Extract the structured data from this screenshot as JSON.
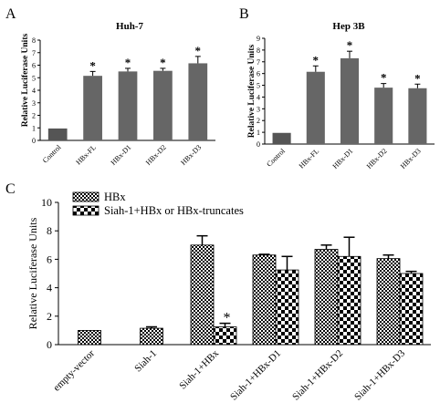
{
  "chart_data": [
    {
      "panel_label": "A",
      "type": "bar",
      "title": "Huh-7",
      "ylabel": "Relative Luciferase Units",
      "ylim": [
        0,
        8
      ],
      "yticks": [
        "0",
        "1",
        "2",
        "3",
        "4",
        "5",
        "6",
        "7",
        "8"
      ],
      "categories": [
        "Control",
        "HBx-FL",
        "HBx-D1",
        "HBx-D2",
        "HBx-D3"
      ],
      "values": [
        0.95,
        5.15,
        5.5,
        5.55,
        6.15
      ],
      "errors": [
        0,
        0.35,
        0.25,
        0.2,
        0.55
      ],
      "significance": [
        "",
        "*",
        "*",
        "*",
        "*"
      ],
      "bar_color": "#666666",
      "control_color": "#555555"
    },
    {
      "panel_label": "B",
      "type": "bar",
      "title": "Hep 3B",
      "ylabel": "Relative Luciferase Units",
      "ylim": [
        0,
        9
      ],
      "yticks": [
        "0",
        "1",
        "2",
        "3",
        "4",
        "5",
        "6",
        "7",
        "8",
        "9"
      ],
      "categories": [
        "Control",
        "HBx-FL",
        "HBx-D1",
        "HBx-D2",
        "HBx-D3"
      ],
      "values": [
        0.95,
        6.15,
        7.3,
        4.8,
        4.75
      ],
      "errors": [
        0,
        0.5,
        0.6,
        0.35,
        0.35
      ],
      "significance": [
        "",
        "*",
        "*",
        "*",
        "*"
      ],
      "bar_color": "#666666",
      "control_color": "#555555"
    },
    {
      "panel_label": "C",
      "type": "bar",
      "ylabel": "Relative Luciferase Units",
      "ylim": [
        0,
        10
      ],
      "yticks": [
        "0",
        "2",
        "4",
        "6",
        "8",
        "10"
      ],
      "categories": [
        "empty-vector",
        "Siah-1",
        "Siah-1+HBx",
        "Siah-1+HBx-D1",
        "Siah-1+HBx-D2",
        "Siah-1+HBx-D3"
      ],
      "series": [
        {
          "name": "HBx",
          "values": [
            1.0,
            1.15,
            7.0,
            6.3,
            6.7,
            6.05
          ],
          "errors": [
            0,
            0.1,
            0.65,
            0.05,
            0.3,
            0.25
          ],
          "pattern": "dense-check"
        },
        {
          "name": "Siah-1+HBx or HBx-truncates",
          "values": [
            null,
            null,
            1.25,
            5.25,
            6.2,
            5.0
          ],
          "errors": [
            0,
            0,
            0.25,
            0.95,
            1.35,
            0.15
          ],
          "pattern": "coarse-check"
        }
      ],
      "significance": [
        "",
        "",
        "*",
        "",
        "",
        ""
      ],
      "significance_series": 1,
      "legend_position": "top-left"
    }
  ]
}
